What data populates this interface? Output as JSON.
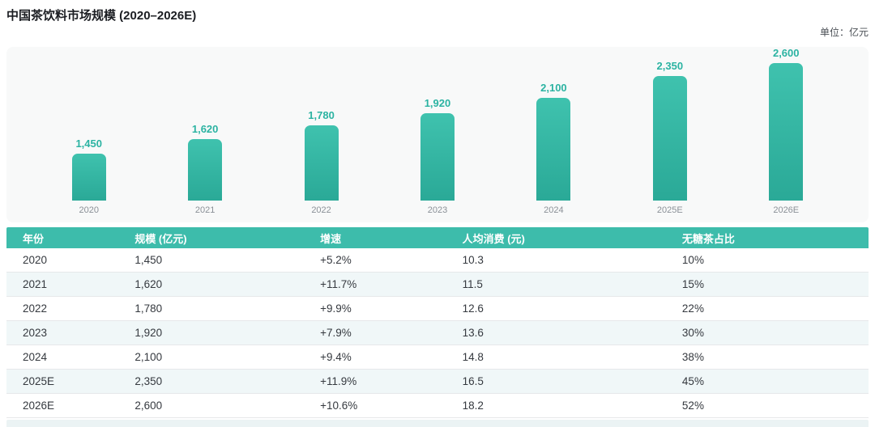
{
  "page": {
    "title": "中国茶饮料市场规模 (2020–2026E)",
    "unit_label": "单位：亿元"
  },
  "colors": {
    "accent_teal": "#33b9a7",
    "bar_gradient_top": "#3fc2ae",
    "bar_gradient_bottom": "#2aa997",
    "table_header_bg": "#3dbcab",
    "chart_panel_bg": "#f8f9f9",
    "zebra_row_bg": "#f0f7f8",
    "row_border": "#e6e8ea",
    "value_label_color": "#2bb3a2",
    "axis_label_color": "#8a9097",
    "body_text": "#35393f"
  },
  "chart_data": {
    "type": "bar",
    "title": "中国茶饮料市场规模 (2020–2026E)",
    "unit": "亿元",
    "categories": [
      "2020",
      "2021",
      "2022",
      "2023",
      "2024",
      "2025E",
      "2026E"
    ],
    "values": [
      1450,
      1620,
      1780,
      1920,
      2100,
      2350,
      2600
    ],
    "value_labels": [
      "1,450",
      "1,620",
      "1,780",
      "1,920",
      "2,100",
      "2,350",
      "2,600"
    ],
    "ylim": [
      900,
      2600
    ],
    "grid": false,
    "legend": false,
    "bar_color": "#33b9a7",
    "value_label_position": "above-bar"
  },
  "table": {
    "headers": [
      "年份",
      "规模 (亿元)",
      "增速",
      "人均消费 (元)",
      "无糖茶占比"
    ],
    "rows": [
      [
        "2020",
        "1,450",
        "+5.2%",
        "10.3",
        "10%"
      ],
      [
        "2021",
        "1,620",
        "+11.7%",
        "11.5",
        "15%"
      ],
      [
        "2022",
        "1,780",
        "+9.9%",
        "12.6",
        "22%"
      ],
      [
        "2023",
        "1,920",
        "+7.9%",
        "13.6",
        "30%"
      ],
      [
        "2024",
        "2,100",
        "+9.4%",
        "14.8",
        "38%"
      ],
      [
        "2025E",
        "2,350",
        "+11.9%",
        "16.5",
        "45%"
      ],
      [
        "2026E",
        "2,600",
        "+10.6%",
        "18.2",
        "52%"
      ]
    ]
  }
}
